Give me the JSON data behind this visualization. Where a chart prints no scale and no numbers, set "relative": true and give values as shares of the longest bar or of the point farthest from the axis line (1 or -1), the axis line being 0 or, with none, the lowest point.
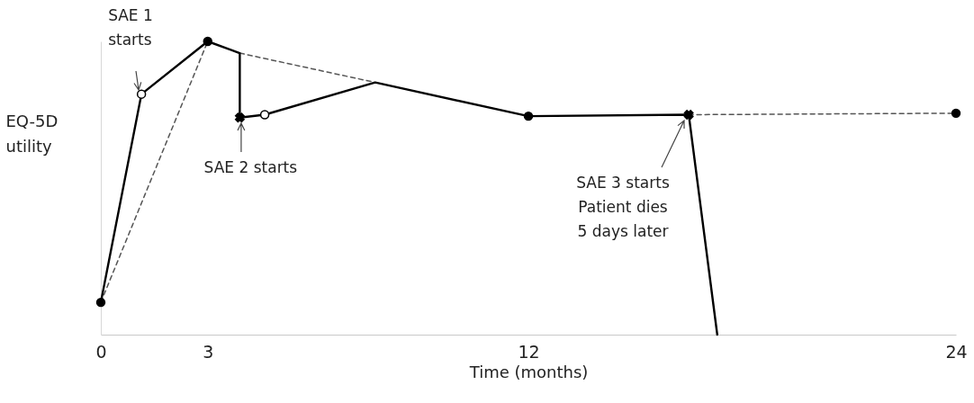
{
  "chart_data": {
    "type": "line",
    "relative": true,
    "xlabel": "Time (months)",
    "ylabel": "EQ-5D\nutility",
    "xlim": [
      0,
      24
    ],
    "xticks": [
      0,
      3,
      12,
      24
    ],
    "series": [
      {
        "type": "line",
        "color": "#555555",
        "line_style": "dashed",
        "x": [
          0,
          3
        ],
        "values": [
          0.11,
          1
        ]
      },
      {
        "type": "line",
        "color": "#555555",
        "line_style": "dashed",
        "x": [
          3.9,
          7.7
        ],
        "values": [
          0.96,
          0.86
        ]
      },
      {
        "type": "line",
        "color": "#555555",
        "line_style": "dashed",
        "x": [
          16.5,
          24
        ],
        "values": [
          0.75,
          0.755
        ]
      },
      {
        "type": "line",
        "color": "#000000",
        "line_style": "solid",
        "x": [
          0,
          1.14,
          3,
          3.9,
          3.9,
          4.6,
          7.7,
          12,
          16.5,
          17.3
        ],
        "values": [
          0.11,
          0.82,
          1,
          0.96,
          0.74,
          0.75,
          0.86,
          0.745,
          0.75,
          0
        ]
      },
      {
        "type": "scatter",
        "color": "#000000",
        "marker": "circle",
        "x": [
          0,
          3,
          12,
          24
        ],
        "values": [
          0.11,
          1,
          0.745,
          0.755
        ]
      },
      {
        "type": "scatter",
        "color": "#ffffff",
        "marker": "circle",
        "x": [
          1.14,
          4.6
        ],
        "values": [
          0.82,
          0.75
        ]
      },
      {
        "type": "scatter",
        "color": "#000000",
        "marker": "cross",
        "x": [
          3.9,
          16.5
        ],
        "values": [
          0.74,
          0.75
        ]
      }
    ],
    "annotations": [
      {
        "text": "SAE 1\nstarts",
        "x": 1.14,
        "y": 0.82
      },
      {
        "text": "SAE 2 starts",
        "x": 3.9,
        "y": 0.74
      },
      "SAE 3 starts\nPatient dies\n 5 days later"
    ]
  }
}
